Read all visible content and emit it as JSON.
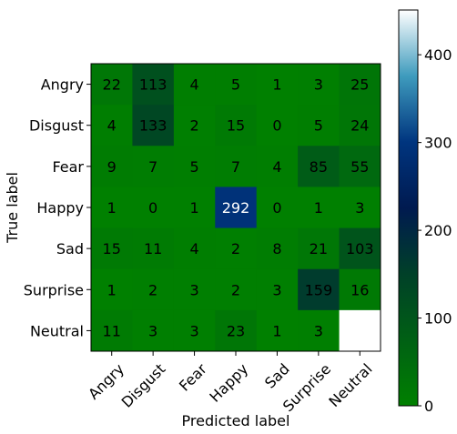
{
  "chart_data": {
    "type": "heatmap",
    "title": "",
    "xlabel": "Predicted label",
    "ylabel": "True label",
    "x_categories": [
      "Angry",
      "Disgust",
      "Fear",
      "Happy",
      "Sad",
      "Surprise",
      "Neutral"
    ],
    "y_categories": [
      "Angry",
      "Disgust",
      "Fear",
      "Happy",
      "Sad",
      "Surprise",
      "Neutral"
    ],
    "values": [
      [
        22,
        113,
        4,
        5,
        1,
        3,
        25
      ],
      [
        4,
        133,
        2,
        15,
        0,
        5,
        24
      ],
      [
        9,
        7,
        5,
        7,
        4,
        85,
        55
      ],
      [
        1,
        0,
        1,
        292,
        0,
        1,
        3
      ],
      [
        15,
        11,
        4,
        2,
        8,
        21,
        103
      ],
      [
        1,
        2,
        3,
        2,
        3,
        159,
        16
      ],
      [
        11,
        3,
        3,
        23,
        1,
        3,
        451
      ]
    ],
    "colormap": "ocean_r",
    "color_range": [
      0,
      451
    ],
    "colorbar": {
      "ticks": [
        "0",
        "100",
        "200",
        "300",
        "400"
      ]
    },
    "x_tick_rotation": "45 degrees",
    "grid": false,
    "legend": "colorbar on the right"
  }
}
